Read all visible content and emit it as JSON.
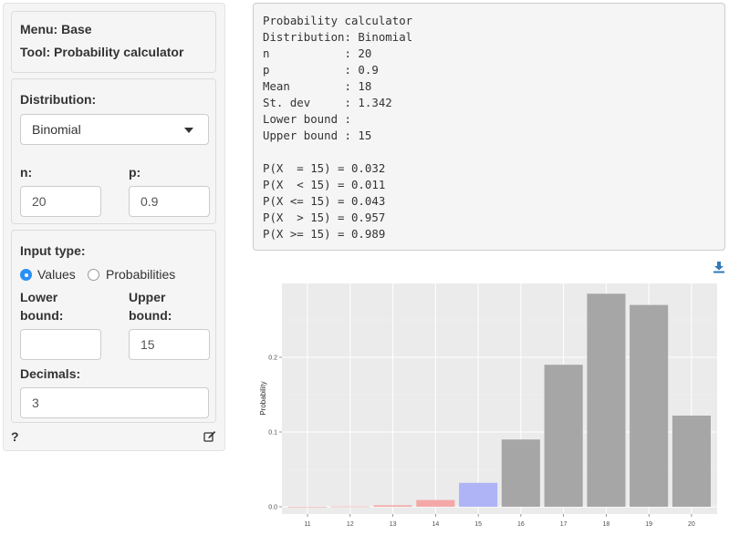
{
  "sidebar": {
    "menu_label": "Menu: Base",
    "tool_label": "Tool: Probability calculator",
    "distribution_label": "Distribution:",
    "distribution_value": "Binomial",
    "n_label": "n:",
    "n_value": "20",
    "p_label": "p:",
    "p_value": "0.9",
    "input_type_label": "Input type:",
    "input_type_options": [
      "Values",
      "Probabilities"
    ],
    "input_type_selected": "Values",
    "lower_label_line1": "Lower",
    "lower_label_line2": "bound:",
    "lower_value": "",
    "upper_label_line1": "Upper",
    "upper_label_line2": "bound:",
    "upper_value": "15",
    "decimals_label": "Decimals:",
    "decimals_value": "3",
    "help_label": "?"
  },
  "output": {
    "lines": [
      "Probability calculator",
      "Distribution: Binomial",
      "n           : 20",
      "p           : 0.9",
      "Mean        : 18",
      "St. dev     : 1.342",
      "Lower bound :",
      "Upper bound : 15",
      "",
      "P(X  = 15) = 0.032",
      "P(X  < 15) = 0.011",
      "P(X <= 15) = 0.043",
      "P(X  > 15) = 0.957",
      "P(X >= 15) = 0.989"
    ]
  },
  "icons": {
    "download": "download-icon",
    "edit": "edit-icon"
  },
  "colors": {
    "accent": "#2a8ff7",
    "bar_default": "#a6a6a6",
    "bar_lower": "#f4a7a7",
    "bar_equal": "#aeb4f5",
    "panel_bg": "#f5f5f5",
    "plot_bg": "#ebebeb"
  },
  "chart_data": {
    "type": "bar",
    "ylabel": "Probability",
    "xlabel": "",
    "categories": [
      "11",
      "12",
      "13",
      "14",
      "15",
      "16",
      "17",
      "18",
      "19",
      "20"
    ],
    "values": [
      0.0001,
      0.0004,
      0.002,
      0.009,
      0.032,
      0.09,
      0.19,
      0.285,
      0.27,
      0.122
    ],
    "bar_groups": [
      "lower",
      "lower",
      "lower",
      "lower",
      "equal",
      "upper",
      "upper",
      "upper",
      "upper",
      "upper"
    ],
    "ylim": [
      0,
      0.3
    ],
    "yticks": [
      0.0,
      0.1,
      0.2
    ],
    "ytick_labels": [
      "0.0",
      "0.1",
      "0.2"
    ],
    "grid": true
  }
}
